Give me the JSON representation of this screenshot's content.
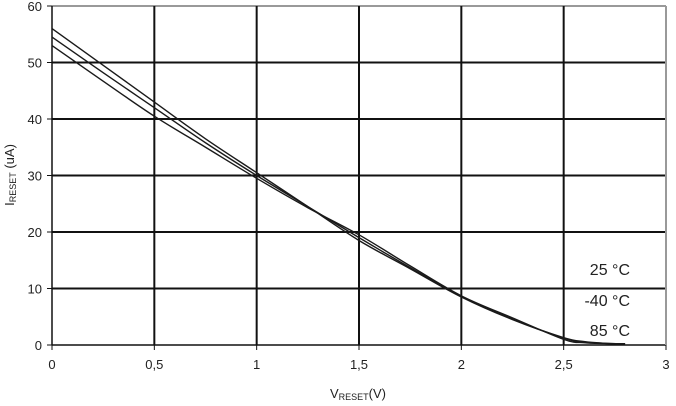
{
  "chart_data": {
    "type": "line",
    "title": "",
    "xlabel": {
      "main": "V",
      "sub": "RESET",
      "suffix": "(V)"
    },
    "ylabel": {
      "main": "I",
      "sub": "RESET",
      "suffix": " (uA)"
    },
    "xlim": [
      0,
      3
    ],
    "ylim": [
      0,
      60
    ],
    "xticks": [
      0,
      0.5,
      1,
      1.5,
      2,
      2.5,
      3
    ],
    "xtick_labels": [
      "0",
      "0,5",
      "1",
      "1,5",
      "2",
      "2,5",
      "3"
    ],
    "yticks": [
      0,
      10,
      20,
      30,
      40,
      50,
      60
    ],
    "ytick_labels": [
      "0",
      "10",
      "20",
      "30",
      "40",
      "50",
      "60"
    ],
    "grid": true,
    "legend_placement": "bottom-right",
    "series": [
      {
        "name": "25 °C",
        "x": [
          0,
          0.25,
          0.5,
          0.75,
          1,
          1.25,
          1.5,
          1.75,
          2,
          2.25,
          2.5,
          2.6,
          2.7,
          2.8
        ],
        "y": [
          56,
          49.5,
          43,
          36.5,
          30.5,
          24.5,
          18.5,
          13.5,
          8.5,
          4.5,
          1.3,
          0.6,
          0.3,
          0.2
        ]
      },
      {
        "name": "-40 °C",
        "x": [
          0,
          0.25,
          0.5,
          0.75,
          1,
          1.25,
          1.5,
          1.75,
          2,
          2.25,
          2.5,
          2.6,
          2.7,
          2.8
        ],
        "y": [
          54.5,
          48.2,
          42,
          35.8,
          30,
          24.5,
          19,
          13.7,
          8.6,
          4.6,
          1.2,
          0.5,
          0.3,
          0.2
        ]
      },
      {
        "name": "85 °C",
        "x": [
          0,
          0.25,
          0.5,
          0.75,
          1,
          1.25,
          1.5,
          1.75,
          2,
          2.25,
          2.5,
          2.6,
          2.7,
          2.8
        ],
        "y": [
          53,
          46.7,
          40.5,
          35,
          29.5,
          24.3,
          19.5,
          14,
          8.7,
          4.8,
          1.0,
          0.4,
          0.25,
          0.2
        ]
      }
    ]
  }
}
